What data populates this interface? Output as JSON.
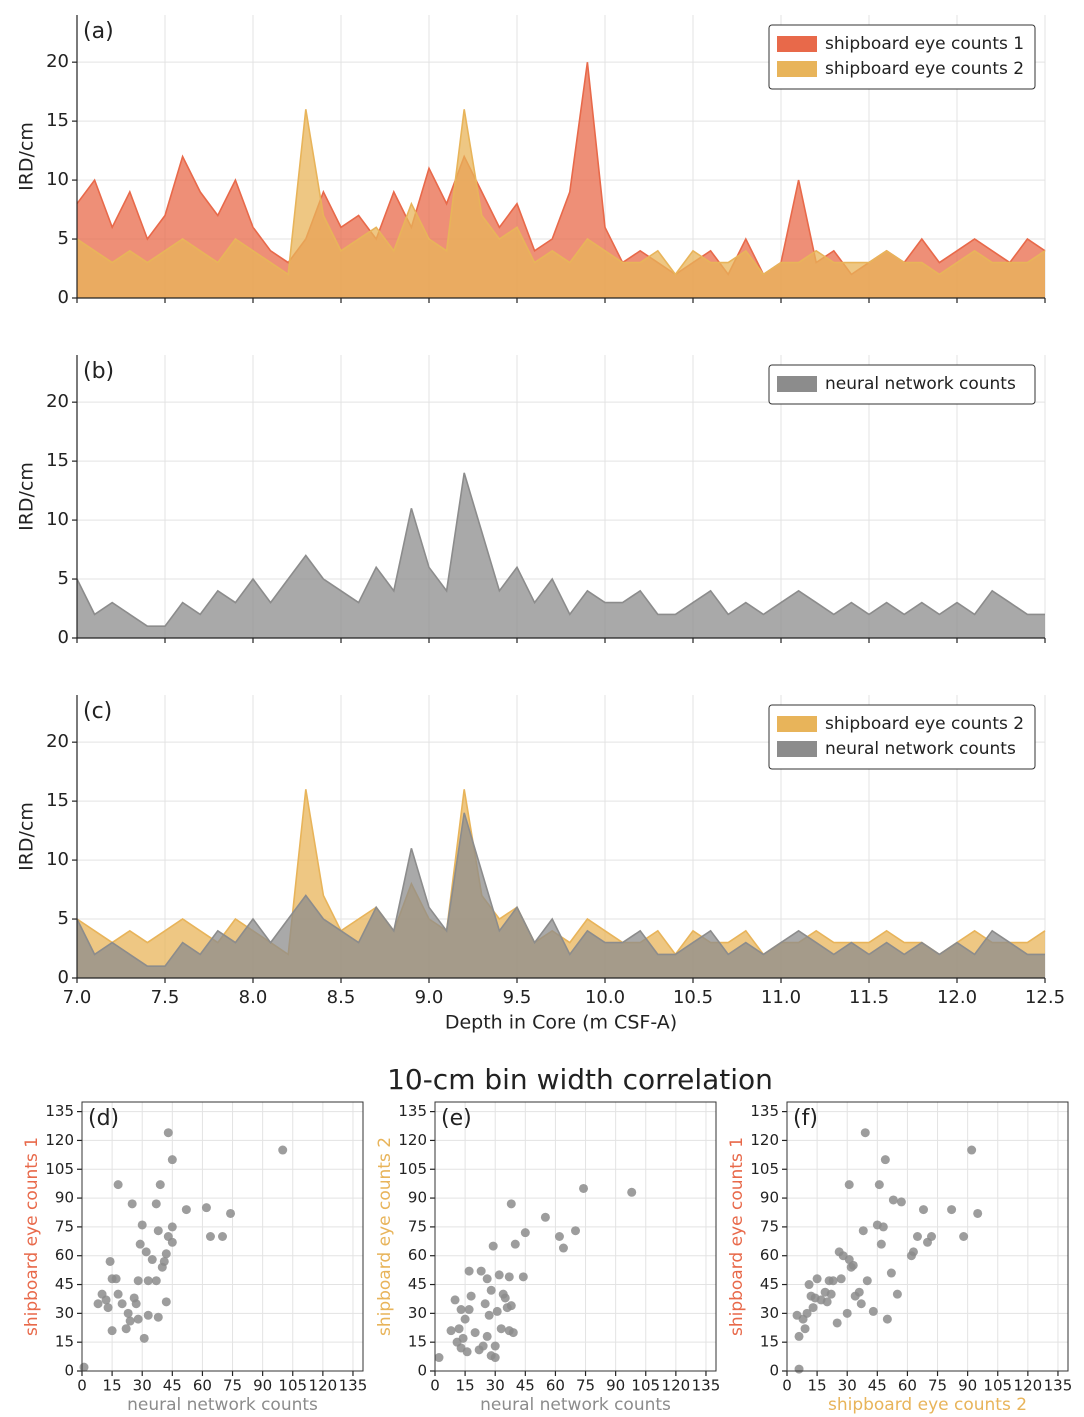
{
  "title": "10-cm bin width correlation",
  "chart_data": [
    {
      "type": "area",
      "panel_label": "(a)",
      "ylabel": "IRD/cm",
      "legend": "upper right",
      "grid": true,
      "x": [
        7.0,
        7.1,
        7.2,
        7.3,
        7.4,
        7.5,
        7.6,
        7.7,
        7.8,
        7.9,
        8.0,
        8.1,
        8.2,
        8.3,
        8.4,
        8.5,
        8.6,
        8.7,
        8.8,
        8.9,
        9.0,
        9.1,
        9.2,
        9.3,
        9.4,
        9.5,
        9.6,
        9.7,
        9.8,
        9.9,
        10.0,
        10.1,
        10.2,
        10.3,
        10.4,
        10.5,
        10.6,
        10.7,
        10.8,
        10.9,
        11.0,
        11.1,
        11.2,
        11.3,
        11.4,
        11.5,
        11.6,
        11.7,
        11.8,
        11.9,
        12.0,
        12.1,
        12.2,
        12.3,
        12.4,
        12.5
      ],
      "series": [
        {
          "name": "shipboard eye counts 1",
          "color": "#e8694a",
          "values": [
            8,
            10,
            6,
            9,
            5,
            7,
            12,
            9,
            7,
            10,
            6,
            4,
            3,
            5,
            9,
            6,
            7,
            5,
            9,
            6,
            11,
            8,
            12,
            9,
            6,
            8,
            4,
            5,
            9,
            20,
            6,
            3,
            4,
            3,
            2,
            3,
            4,
            2,
            5,
            2,
            3,
            10,
            3,
            4,
            2,
            3,
            4,
            3,
            5,
            3,
            4,
            5,
            4,
            3,
            5,
            4
          ]
        },
        {
          "name": "shipboard eye counts 2",
          "color": "#e8b45a",
          "values": [
            5,
            4,
            3,
            4,
            3,
            4,
            5,
            4,
            3,
            5,
            4,
            3,
            2,
            16,
            7,
            4,
            5,
            6,
            4,
            8,
            5,
            4,
            16,
            7,
            5,
            6,
            3,
            4,
            3,
            5,
            4,
            3,
            3,
            4,
            2,
            4,
            3,
            3,
            4,
            2,
            3,
            3,
            4,
            3,
            3,
            3,
            4,
            3,
            3,
            2,
            3,
            4,
            3,
            3,
            3,
            4
          ]
        }
      ],
      "xlim": [
        7.0,
        12.5
      ],
      "xticks": [
        7,
        7.5,
        8,
        8.5,
        9,
        9.5,
        10,
        10.5,
        11,
        11.5,
        12,
        12.5
      ],
      "ylim": [
        0,
        24
      ],
      "yticks": [
        0,
        5,
        10,
        15,
        20
      ]
    },
    {
      "type": "area",
      "panel_label": "(b)",
      "ylabel": "IRD/cm",
      "legend": "upper right",
      "grid": true,
      "x": [
        7.0,
        7.1,
        7.2,
        7.3,
        7.4,
        7.5,
        7.6,
        7.7,
        7.8,
        7.9,
        8.0,
        8.1,
        8.2,
        8.3,
        8.4,
        8.5,
        8.6,
        8.7,
        8.8,
        8.9,
        9.0,
        9.1,
        9.2,
        9.3,
        9.4,
        9.5,
        9.6,
        9.7,
        9.8,
        9.9,
        10.0,
        10.1,
        10.2,
        10.3,
        10.4,
        10.5,
        10.6,
        10.7,
        10.8,
        10.9,
        11.0,
        11.1,
        11.2,
        11.3,
        11.4,
        11.5,
        11.6,
        11.7,
        11.8,
        11.9,
        12.0,
        12.1,
        12.2,
        12.3,
        12.4,
        12.5
      ],
      "series": [
        {
          "name": "neural network counts",
          "color": "#8c8c8c",
          "values": [
            5,
            2,
            3,
            2,
            1,
            1,
            3,
            2,
            4,
            3,
            5,
            3,
            5,
            7,
            5,
            4,
            3,
            6,
            4,
            11,
            6,
            4,
            14,
            9,
            4,
            6,
            3,
            5,
            2,
            4,
            3,
            3,
            4,
            2,
            2,
            3,
            4,
            2,
            3,
            2,
            3,
            4,
            3,
            2,
            3,
            2,
            3,
            2,
            3,
            2,
            3,
            2,
            4,
            3,
            2,
            2
          ]
        }
      ],
      "xlim": [
        7.0,
        12.5
      ],
      "xticks": [
        7,
        7.5,
        8,
        8.5,
        9,
        9.5,
        10,
        10.5,
        11,
        11.5,
        12,
        12.5
      ],
      "ylim": [
        0,
        24
      ],
      "yticks": [
        0,
        5,
        10,
        15,
        20
      ]
    },
    {
      "type": "area",
      "panel_label": "(c)",
      "ylabel": "IRD/cm",
      "xlabel": "Depth in Core (m CSF-A)",
      "legend": "upper right",
      "grid": true,
      "x": [
        7.0,
        7.1,
        7.2,
        7.3,
        7.4,
        7.5,
        7.6,
        7.7,
        7.8,
        7.9,
        8.0,
        8.1,
        8.2,
        8.3,
        8.4,
        8.5,
        8.6,
        8.7,
        8.8,
        8.9,
        9.0,
        9.1,
        9.2,
        9.3,
        9.4,
        9.5,
        9.6,
        9.7,
        9.8,
        9.9,
        10.0,
        10.1,
        10.2,
        10.3,
        10.4,
        10.5,
        10.6,
        10.7,
        10.8,
        10.9,
        11.0,
        11.1,
        11.2,
        11.3,
        11.4,
        11.5,
        11.6,
        11.7,
        11.8,
        11.9,
        12.0,
        12.1,
        12.2,
        12.3,
        12.4,
        12.5
      ],
      "series": [
        {
          "name": "shipboard eye counts 2",
          "color": "#e8b45a",
          "values": [
            5,
            4,
            3,
            4,
            3,
            4,
            5,
            4,
            3,
            5,
            4,
            3,
            2,
            16,
            7,
            4,
            5,
            6,
            4,
            8,
            5,
            4,
            16,
            7,
            5,
            6,
            3,
            4,
            3,
            5,
            4,
            3,
            3,
            4,
            2,
            4,
            3,
            3,
            4,
            2,
            3,
            3,
            4,
            3,
            3,
            3,
            4,
            3,
            3,
            2,
            3,
            4,
            3,
            3,
            3,
            4
          ]
        },
        {
          "name": "neural network counts",
          "color": "#8c8c8c",
          "values": [
            5,
            2,
            3,
            2,
            1,
            1,
            3,
            2,
            4,
            3,
            5,
            3,
            5,
            7,
            5,
            4,
            3,
            6,
            4,
            11,
            6,
            4,
            14,
            9,
            4,
            6,
            3,
            5,
            2,
            4,
            3,
            3,
            4,
            2,
            2,
            3,
            4,
            2,
            3,
            2,
            3,
            4,
            3,
            2,
            3,
            2,
            3,
            2,
            3,
            2,
            3,
            2,
            4,
            3,
            2,
            2
          ]
        }
      ],
      "xlim": [
        7.0,
        12.5
      ],
      "xticks": [
        {
          "value": 7,
          "label": "7.0"
        },
        {
          "value": 7.5,
          "label": "7.5"
        },
        {
          "value": 8,
          "label": "8.0"
        },
        {
          "value": 8.5,
          "label": "8.5"
        },
        {
          "value": 9,
          "label": "9.0"
        },
        {
          "value": 9.5,
          "label": "9.5"
        },
        {
          "value": 10,
          "label": "10.0"
        },
        {
          "value": 10.5,
          "label": "10.5"
        },
        {
          "value": 11,
          "label": "11.0"
        },
        {
          "value": 11.5,
          "label": "11.5"
        },
        {
          "value": 12,
          "label": "12.0"
        },
        {
          "value": 12.5,
          "label": "12.5"
        }
      ],
      "ylim": [
        0,
        24
      ],
      "yticks": [
        0,
        5,
        10,
        15,
        20
      ]
    },
    {
      "type": "scatter",
      "panel_label": "(d)",
      "xlabel": "neural network counts",
      "ylabel": "shipboard eye counts 1",
      "xlabel_color": "#8c8c8c",
      "ylabel_color": "#e8694a",
      "color": "#8c8c8c",
      "grid": true,
      "x": [
        1,
        8,
        10,
        12,
        13,
        14,
        15,
        15,
        17,
        18,
        18,
        20,
        22,
        23,
        24,
        25,
        26,
        27,
        28,
        28,
        29,
        30,
        31,
        32,
        33,
        33,
        35,
        37,
        37,
        38,
        38,
        39,
        40,
        41,
        42,
        42,
        43,
        43,
        45,
        45,
        45,
        52,
        62,
        64,
        70,
        74,
        100
      ],
      "values": [
        2,
        35,
        40,
        37,
        33,
        57,
        21,
        48,
        48,
        40,
        97,
        35,
        22,
        30,
        26,
        87,
        38,
        35,
        47,
        27,
        66,
        76,
        17,
        62,
        47,
        29,
        58,
        47,
        87,
        73,
        28,
        97,
        54,
        57,
        61,
        36,
        70,
        124,
        110,
        67,
        75,
        84,
        85,
        70,
        70,
        82,
        115
      ],
      "xlim": [
        0,
        140
      ],
      "xticks": [
        0,
        15,
        30,
        45,
        60,
        75,
        90,
        105,
        120,
        135
      ],
      "ylim": [
        0,
        140
      ],
      "yticks": [
        0,
        15,
        30,
        45,
        60,
        75,
        90,
        105,
        120,
        135
      ]
    },
    {
      "type": "scatter",
      "panel_label": "(e)",
      "xlabel": "neural network counts",
      "ylabel": "shipboard eye counts 2",
      "xlabel_color": "#8c8c8c",
      "ylabel_color": "#e8b45a",
      "color": "#8c8c8c",
      "grid": true,
      "x": [
        2,
        8,
        10,
        11,
        12,
        13,
        13,
        14,
        15,
        16,
        17,
        17,
        18,
        20,
        22,
        23,
        24,
        25,
        26,
        26,
        27,
        28,
        28,
        29,
        30,
        30,
        31,
        32,
        33,
        34,
        35,
        36,
        37,
        37,
        38,
        38,
        39,
        40,
        44,
        45,
        55,
        62,
        64,
        70,
        74,
        98
      ],
      "values": [
        7,
        21,
        37,
        15,
        22,
        32,
        12,
        17,
        27,
        10,
        32,
        52,
        39,
        20,
        11,
        52,
        13,
        35,
        48,
        18,
        29,
        42,
        8,
        65,
        13,
        7,
        31,
        50,
        22,
        40,
        38,
        33,
        21,
        49,
        34,
        87,
        20,
        66,
        49,
        72,
        80,
        70,
        64,
        73,
        95,
        93
      ],
      "xlim": [
        0,
        140
      ],
      "xticks": [
        0,
        15,
        30,
        45,
        60,
        75,
        90,
        105,
        120,
        135
      ],
      "ylim": [
        0,
        140
      ],
      "yticks": [
        0,
        15,
        30,
        45,
        60,
        75,
        90,
        105,
        120,
        135
      ]
    },
    {
      "type": "scatter",
      "panel_label": "(f)",
      "xlabel": "shipboard eye counts 2",
      "ylabel": "shipboard eye counts 1",
      "xlabel_color": "#e8b45a",
      "ylabel_color": "#e8694a",
      "color": "#8c8c8c",
      "grid": true,
      "x": [
        6,
        5,
        6,
        8,
        9,
        10,
        11,
        12,
        13,
        14,
        15,
        17,
        19,
        20,
        21,
        22,
        23,
        25,
        26,
        27,
        28,
        30,
        31,
        31,
        32,
        33,
        34,
        36,
        37,
        38,
        39,
        40,
        43,
        45,
        46,
        47,
        48,
        49,
        50,
        52,
        53,
        55,
        57,
        62,
        63,
        65,
        68,
        70,
        72,
        82,
        88,
        92,
        95
      ],
      "values": [
        1,
        29,
        18,
        27,
        22,
        30,
        45,
        39,
        33,
        38,
        48,
        37,
        41,
        36,
        47,
        40,
        47,
        25,
        62,
        48,
        60,
        30,
        58,
        97,
        54,
        55,
        39,
        41,
        35,
        73,
        124,
        47,
        31,
        76,
        97,
        66,
        75,
        110,
        27,
        51,
        89,
        40,
        88,
        60,
        62,
        70,
        84,
        67,
        70,
        84,
        70,
        115,
        82
      ],
      "xlim": [
        0,
        140
      ],
      "xticks": [
        0,
        15,
        30,
        45,
        60,
        75,
        90,
        105,
        120,
        135
      ],
      "ylim": [
        0,
        140
      ],
      "yticks": [
        0,
        15,
        30,
        45,
        60,
        75,
        90,
        105,
        120,
        135
      ]
    }
  ]
}
